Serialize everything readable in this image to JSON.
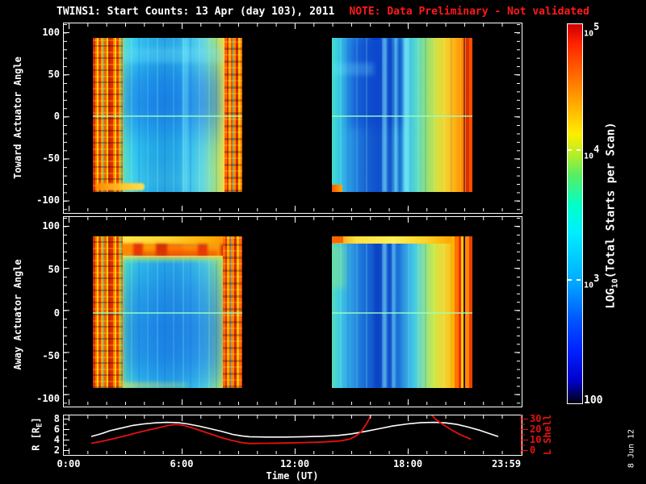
{
  "title": {
    "main": "TWINS1: Start Counts: 13 Apr (day 103), 2011",
    "note": "NOTE: Data Preliminary - Not validated"
  },
  "datestamp": "8 Jun 12",
  "xaxis": {
    "label": "Time (UT)",
    "ticks": [
      "0:00",
      "6:00",
      "12:00",
      "18:00",
      "23:59"
    ]
  },
  "panels": {
    "toward": {
      "ylabel": "Toward Actuator Angle",
      "yticks": [
        "100",
        "50",
        "0",
        "-50",
        "-100"
      ]
    },
    "away": {
      "ylabel": "Away Actuator Angle",
      "yticks": [
        "100",
        "50",
        "0",
        "-50",
        "-100"
      ]
    },
    "ephemeris": {
      "r_label_pre": "R [R",
      "r_label_sub": "E",
      "r_label_post": "]",
      "r_ticks": [
        "8",
        "6",
        "4",
        "2"
      ],
      "l_label": "L Shell",
      "l_ticks": [
        "30",
        "20",
        "10",
        "0"
      ]
    }
  },
  "colorbar": {
    "title_pre": "LOG",
    "title_sub": "10",
    "title_post": "(Total Starts per Scan)",
    "ticks": [
      {
        "base": "10",
        "exp": "5"
      },
      {
        "base": "10",
        "exp": "4"
      },
      {
        "base": "10",
        "exp": "3"
      },
      {
        "base": "100",
        "exp": ""
      }
    ]
  },
  "colors": {
    "background": "#000000",
    "axis": "#ffffff",
    "note_red": "#ff1a1a",
    "lshell_red": "#e81010",
    "r_curve": "#ffffff",
    "colormap_top": "#cc0000",
    "colormap_bottom": "#000000"
  },
  "chart_data": [
    {
      "type": "heatmap",
      "title": "Toward Actuator Angle vs Time",
      "xlabel": "Time (UT)",
      "x_ticks_hours": [
        0,
        6,
        12,
        18,
        23.983
      ],
      "ylabel": "Toward Actuator Angle",
      "ylim": [
        -100,
        100
      ],
      "y_ticks": [
        100,
        50,
        0,
        -50,
        -100
      ],
      "value_label": "LOG10(Total Starts per Scan)",
      "value_range_ticks": [
        100,
        1000,
        10000,
        100000
      ],
      "colormap": "rainbow (dark blue = low ~100, red = high ~1e5)",
      "data_segments_ut": [
        [
          "01:15",
          "09:10"
        ],
        [
          "13:55",
          "21:25"
        ]
      ],
      "features": [
        "noisy red/orange/yellow vertical striping at segment edges (low-altitude passes)",
        "cyan body with darker blue core in segment centers",
        "thin pale green horizontal line at 0 degrees actuator angle",
        "second segment grades to yellow-orange-red toward its right edge",
        "black background where no data (mid-day gap)"
      ]
    },
    {
      "type": "heatmap",
      "title": "Away Actuator Angle vs Time",
      "xlabel": "Time (UT)",
      "x_ticks_hours": [
        0,
        6,
        12,
        18,
        23.983
      ],
      "ylabel": "Away Actuator Angle",
      "ylim": [
        -100,
        100
      ],
      "y_ticks": [
        100,
        50,
        0,
        -50,
        -100
      ],
      "value_label": "LOG10(Total Starts per Scan)",
      "value_range_ticks": [
        100,
        1000,
        10000,
        100000
      ],
      "colormap": "rainbow (dark blue = low ~100, red = high ~1e5)",
      "data_segments_ut": [
        [
          "01:15",
          "09:10"
        ],
        [
          "13:55",
          "21:25"
        ]
      ],
      "features": [
        "bright wavy orange/red band near +75 deg across first segment",
        "yellow band along top edge of second segment",
        "blue core lower-center, noisy hot edges, pale 0-degree line",
        "second segment grades to yellow-orange-red at right"
      ]
    },
    {
      "type": "line",
      "title": "Spacecraft ephemeris",
      "xlabel": "Time (UT)",
      "x_hours_range": [
        0,
        24
      ],
      "left_axis": {
        "label": "R [RE]",
        "ticks": [
          2,
          4,
          6,
          8
        ],
        "color": "#ffffff"
      },
      "right_axis": {
        "label": "L Shell",
        "ticks": [
          0,
          10,
          20,
          30
        ],
        "color": "#e81010"
      },
      "series": [
        {
          "name": "R",
          "axis": "left",
          "color": "#ffffff",
          "points": [
            [
              1.2,
              4.6
            ],
            [
              1.7,
              5.1
            ],
            [
              2.2,
              5.7
            ],
            [
              2.8,
              6.2
            ],
            [
              3.4,
              6.7
            ],
            [
              4.0,
              7.0
            ],
            [
              4.6,
              7.2
            ],
            [
              5.2,
              7.3
            ],
            [
              5.8,
              7.25
            ],
            [
              6.3,
              7.0
            ],
            [
              6.9,
              6.6
            ],
            [
              7.5,
              6.1
            ],
            [
              8.1,
              5.6
            ],
            [
              8.7,
              5.0
            ],
            [
              9.2,
              4.7
            ],
            [
              9.6,
              4.55
            ],
            [
              10.5,
              4.5
            ],
            [
              11.5,
              4.5
            ],
            [
              12.5,
              4.55
            ],
            [
              13.5,
              4.65
            ],
            [
              14.3,
              4.8
            ],
            [
              15.0,
              5.1
            ],
            [
              15.8,
              5.6
            ],
            [
              16.5,
              6.1
            ],
            [
              17.2,
              6.6
            ],
            [
              18.0,
              7.0
            ],
            [
              18.7,
              7.25
            ],
            [
              19.4,
              7.3
            ],
            [
              20.0,
              7.2
            ],
            [
              20.6,
              6.9
            ],
            [
              21.2,
              6.4
            ],
            [
              21.8,
              5.8
            ],
            [
              22.3,
              5.2
            ],
            [
              22.8,
              4.6
            ]
          ]
        },
        {
          "name": "L Shell",
          "axis": "right",
          "color": "#e81010",
          "segments": [
            [
              [
                1.2,
                6.5
              ],
              [
                1.8,
                8.5
              ],
              [
                2.4,
                11
              ],
              [
                3.0,
                13.5
              ],
              [
                3.6,
                16.5
              ],
              [
                4.2,
                19
              ],
              [
                4.8,
                21.5
              ],
              [
                5.3,
                23.5
              ],
              [
                5.7,
                24.5
              ],
              [
                6.1,
                23.5
              ],
              [
                6.6,
                21
              ],
              [
                7.1,
                18
              ],
              [
                7.6,
                15
              ],
              [
                8.1,
                12
              ],
              [
                8.6,
                9.5
              ],
              [
                9.1,
                7.5
              ],
              [
                9.6,
                6.3
              ],
              [
                10.5,
                6.5
              ],
              [
                11.5,
                6.8
              ],
              [
                12.5,
                7.2
              ],
              [
                13.3,
                7.6
              ],
              [
                14.0,
                8.2
              ],
              [
                14.5,
                9.0
              ],
              [
                14.9,
                10.5
              ],
              [
                15.2,
                13
              ],
              [
                15.5,
                17
              ],
              [
                15.7,
                22
              ],
              [
                15.9,
                28
              ],
              [
                16.05,
                34
              ]
            ],
            [
              [
                19.25,
                34
              ],
              [
                19.5,
                29
              ],
              [
                19.9,
                24
              ],
              [
                20.3,
                19.5
              ],
              [
                20.7,
                15.5
              ],
              [
                21.0,
                13
              ],
              [
                21.2,
                11.5
              ],
              [
                21.35,
                10.2
              ]
            ]
          ]
        }
      ]
    }
  ]
}
